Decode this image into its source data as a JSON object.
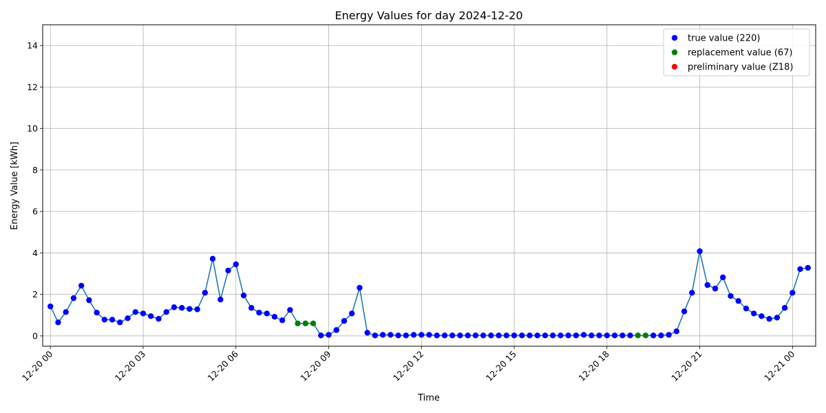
{
  "chart_data": {
    "type": "line",
    "title": "Energy Values for day 2024-12-20",
    "xlabel": "Time",
    "ylabel": "Energy Value [kWh]",
    "xlim": [
      -0.25,
      24.75
    ],
    "ylim": [
      -0.5,
      15
    ],
    "grid": true,
    "legend_position": "top-right",
    "line_color": "#1f77b4",
    "x_ticks": [
      {
        "value": 0,
        "label": "12-20 00"
      },
      {
        "value": 3,
        "label": "12-20 03"
      },
      {
        "value": 6,
        "label": "12-20 06"
      },
      {
        "value": 9,
        "label": "12-20 09"
      },
      {
        "value": 12,
        "label": "12-20 12"
      },
      {
        "value": 15,
        "label": "12-20 15"
      },
      {
        "value": 18,
        "label": "12-20 18"
      },
      {
        "value": 21,
        "label": "12-20 21"
      },
      {
        "value": 24,
        "label": "12-21 00"
      }
    ],
    "y_ticks": [
      0,
      2,
      4,
      6,
      8,
      10,
      12,
      14
    ],
    "legend": [
      {
        "label": "true value (220)",
        "color": "#0000ff"
      },
      {
        "label": "replacement value (67)",
        "color": "#008000"
      },
      {
        "label": "preliminary value (Z18)",
        "color": "#ff0000"
      }
    ],
    "time_step_hours": 0.25,
    "values": [
      1.42,
      0.65,
      1.15,
      1.82,
      2.42,
      1.72,
      1.12,
      0.78,
      0.78,
      0.65,
      0.85,
      1.15,
      1.08,
      0.95,
      0.82,
      1.15,
      1.38,
      1.35,
      1.3,
      1.28,
      2.08,
      3.72,
      1.75,
      3.15,
      3.45,
      1.95,
      1.35,
      1.12,
      1.08,
      0.92,
      0.75,
      1.25,
      0.6,
      0.6,
      0.6,
      0.02,
      0.05,
      0.28,
      0.72,
      1.08,
      2.32,
      0.15,
      0.02,
      0.05,
      0.05,
      0.02,
      0.02,
      0.05,
      0.05,
      0.05,
      0.02,
      0.02,
      0.02,
      0.02,
      0.02,
      0.02,
      0.02,
      0.02,
      0.02,
      0.02,
      0.02,
      0.02,
      0.02,
      0.02,
      0.02,
      0.02,
      0.02,
      0.02,
      0.02,
      0.05,
      0.02,
      0.02,
      0.02,
      0.02,
      0.02,
      0.02,
      0.02,
      0.02,
      0.02,
      0.02,
      0.05,
      0.22,
      1.18,
      2.08,
      4.08,
      2.45,
      2.28,
      2.82,
      1.92,
      1.68,
      1.32,
      1.08,
      0.95,
      0.82,
      0.88,
      1.35,
      2.08,
      3.22,
      3.28
    ],
    "series_status": "true true true true true true true true true true true true true true true true true true true true true true true true true true true true true true true true replacement replacement replacement true true true true true true true true true true true true true true true true true true true true true true true true true true true true true true true true true true true true true true true true true replacement replacement true true true true true true true true true true true true true true true true true true true"
  }
}
